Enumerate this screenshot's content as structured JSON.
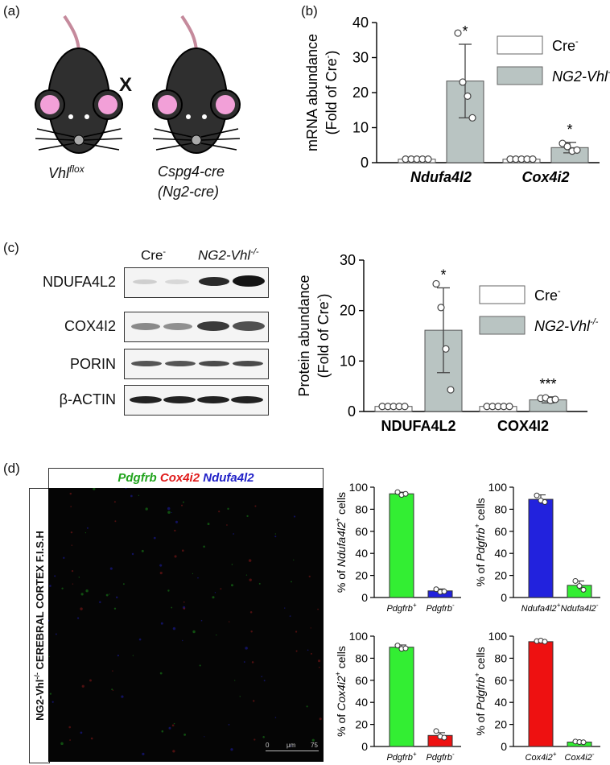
{
  "panels": {
    "a": "(a)",
    "b": "(b)",
    "c": "(c)",
    "d": "(d)"
  },
  "panel_a": {
    "cross_symbol": "X",
    "mouse1_label": "Vhl",
    "mouse1_sup": "flox",
    "mouse2_line1": "Cspg4-cre",
    "mouse2_line2": "(Ng2-cre)"
  },
  "panel_c_blot": {
    "group1": "Cre",
    "group1_sup": "-",
    "group2": "NG2-Vhl",
    "group2_sup": "-/-",
    "rows": [
      "NDUFA4L2",
      "COX4I2",
      "PORIN",
      "β-ACTIN"
    ]
  },
  "panel_d_image": {
    "title_parts": [
      {
        "text": "Pdgfrb",
        "color": "#22a41e"
      },
      {
        "text": "Cox4i2",
        "color": "#e01b1b"
      },
      {
        "text": "Ndufa4l2",
        "color": "#2121c8"
      }
    ],
    "side_label": "NG2-Vhl",
    "side_label_sup": "-/-",
    "side_label_rest": "CEREBRAL CORTEX F.I.S.H",
    "scale_0": "0",
    "scale_unit": "μm",
    "scale_75": "75"
  },
  "chart_data": [
    {
      "id": "b",
      "type": "bar",
      "ylabel_line1": "mRNA abundance",
      "ylabel_line2": "(Fold of Cre",
      "ylabel_sup": "-",
      "ylabel_end": ")",
      "ylim": [
        0,
        40
      ],
      "yticks": [
        0,
        10,
        20,
        30,
        40
      ],
      "categories": [
        "Ndufa4l2",
        "Cox4i2"
      ],
      "category_style": "bold-italic",
      "series": [
        {
          "name": "Cre",
          "name_sup": "-",
          "color": "#ffffff",
          "values": [
            1,
            1
          ],
          "points": [
            [
              1,
              1,
              1,
              1,
              1
            ],
            [
              1,
              1,
              1,
              1,
              1
            ]
          ]
        },
        {
          "name": "NG2-Vhl",
          "name_sup": "-/-",
          "color": "#b9c4c2",
          "values": [
            23.3,
            4.3
          ],
          "errors": [
            10.5,
            1.5
          ],
          "points": [
            [
              37,
              23,
              19,
              12.8
            ],
            [
              5.5,
              4.6,
              3.3,
              3.6
            ]
          ]
        }
      ],
      "annotations": [
        "*",
        "*"
      ]
    },
    {
      "id": "c",
      "type": "bar",
      "ylabel_line1": "Protein abundance",
      "ylabel_line2": "(Fold of Cre",
      "ylabel_sup": "-",
      "ylabel_end": ")",
      "ylim": [
        0,
        30
      ],
      "yticks": [
        0,
        10,
        20,
        30
      ],
      "categories": [
        "NDUFA4L2",
        "COX4I2"
      ],
      "category_style": "bold",
      "series": [
        {
          "name": "Cre",
          "name_sup": "-",
          "color": "#ffffff",
          "values": [
            1,
            1
          ],
          "points": [
            [
              1,
              1,
              1,
              1,
              1
            ],
            [
              1,
              1,
              1,
              1,
              1
            ]
          ]
        },
        {
          "name": "NG2-Vhl",
          "name_sup": "-/-",
          "color": "#b9c4c2",
          "values": [
            16.1,
            2.3
          ],
          "errors": [
            8.4,
            0.6
          ],
          "points": [
            [
              25.3,
              20.6,
              12.4,
              4.3
            ],
            [
              2.6,
              2.7,
              2.2,
              2.4
            ]
          ]
        }
      ],
      "annotations": [
        "*",
        "***"
      ]
    },
    {
      "id": "d1",
      "type": "bar",
      "ylabel_pre": "% of ",
      "ylabel_gene": "Ndufa4l2",
      "ylabel_sup": "+",
      "ylabel_post": " cells",
      "ylim": [
        0,
        100
      ],
      "yticks": [
        0,
        20,
        40,
        60,
        80,
        100
      ],
      "categories": [
        "Pdgfrb",
        "Pdgfrb"
      ],
      "category_sups": [
        "+",
        "-"
      ],
      "colors": [
        "#33ee33",
        "#2222dd"
      ],
      "values": [
        94,
        6
      ],
      "errors": [
        1.5,
        1.8
      ],
      "points": [
        [
          95.5,
          93,
          94
        ],
        [
          7.5,
          5,
          5.5
        ]
      ]
    },
    {
      "id": "d2",
      "type": "bar",
      "ylabel_pre": "% of ",
      "ylabel_gene": "Pdgfrb",
      "ylabel_sup": "+",
      "ylabel_post": " cells",
      "ylim": [
        0,
        100
      ],
      "yticks": [
        0,
        20,
        40,
        60,
        80,
        100
      ],
      "categories": [
        "Ndufa4l2",
        "Ndufa4l2"
      ],
      "category_sups": [
        "+",
        "-"
      ],
      "colors": [
        "#2222dd",
        "#33ee33"
      ],
      "values": [
        89,
        11
      ],
      "errors": [
        4,
        4
      ],
      "points": [
        [
          92.5,
          88,
          86.5
        ],
        [
          15,
          10.5,
          7
        ]
      ]
    },
    {
      "id": "d3",
      "type": "bar",
      "ylabel_pre": "% of ",
      "ylabel_gene": "Cox4i2",
      "ylabel_sup": "+",
      "ylabel_post": " cells",
      "ylim": [
        0,
        100
      ],
      "yticks": [
        0,
        20,
        40,
        60,
        80,
        100
      ],
      "categories": [
        "Pdgfrb",
        "Pdgfrb"
      ],
      "category_sups": [
        "+",
        "-"
      ],
      "colors": [
        "#33ee33",
        "#ee1111"
      ],
      "values": [
        90,
        10
      ],
      "errors": [
        2,
        2.5
      ],
      "points": [
        [
          91.5,
          88.5,
          89
        ],
        [
          14,
          9,
          8
        ]
      ]
    },
    {
      "id": "d4",
      "type": "bar",
      "ylabel_pre": "% of ",
      "ylabel_gene": "Pdgfrb",
      "ylabel_sup": "+",
      "ylabel_post": " cells",
      "ylim": [
        0,
        100
      ],
      "yticks": [
        0,
        20,
        40,
        60,
        80,
        100
      ],
      "categories": [
        "Cox4i2",
        "Cox4i2"
      ],
      "category_sups": [
        "+",
        "-"
      ],
      "colors": [
        "#ee1111",
        "#33ee33"
      ],
      "values": [
        95,
        4
      ],
      "errors": [
        0.8,
        1
      ],
      "points": [
        [
          95.5,
          96,
          95
        ],
        [
          4.5,
          4,
          3.8
        ]
      ]
    }
  ]
}
